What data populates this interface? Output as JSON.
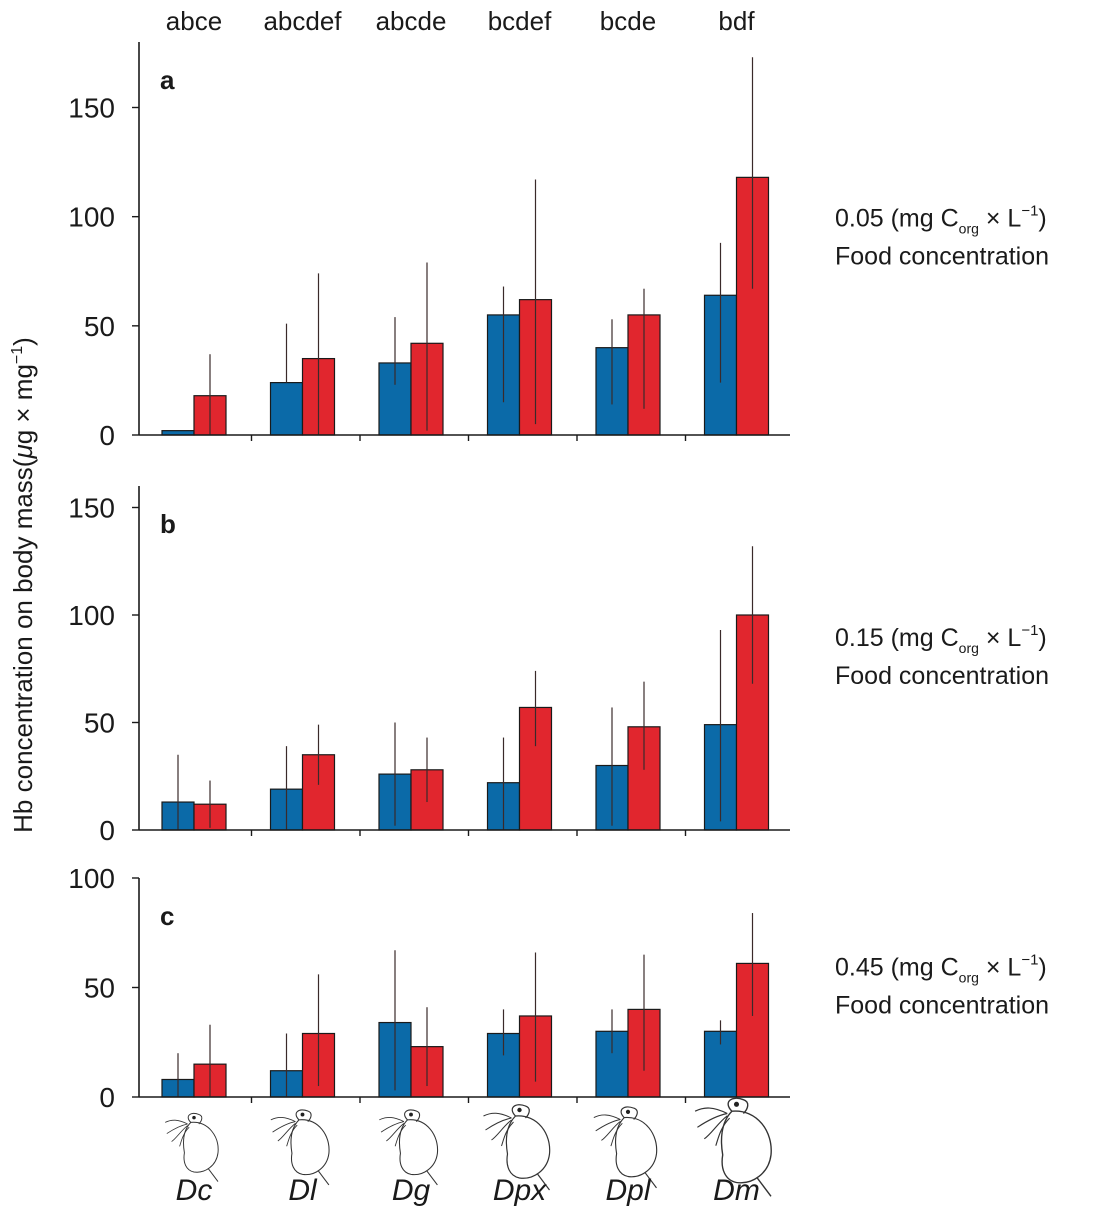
{
  "chart_data": [
    {
      "type": "bar",
      "panel": "a",
      "categories": [
        "Dc",
        "Dl",
        "Dg",
        "Dpx",
        "Dpl",
        "Dm"
      ],
      "series": [
        {
          "name": "blue",
          "color": "#0b6aa8",
          "values": [
            2,
            24,
            33,
            55,
            40,
            64
          ],
          "err_low": [
            2,
            24,
            23,
            15,
            14,
            24
          ],
          "err_high": [
            2,
            51,
            54,
            68,
            53,
            88
          ]
        },
        {
          "name": "red",
          "color": "#e1262e",
          "values": [
            18,
            35,
            42,
            62,
            55,
            118
          ],
          "err_low": [
            0,
            0,
            2,
            5,
            12,
            67
          ],
          "err_high": [
            37,
            74,
            79,
            117,
            67,
            173
          ]
        }
      ],
      "ylim": [
        0,
        180
      ],
      "yticks": [
        0,
        50,
        100,
        150
      ],
      "letters": [
        "abce",
        "abcdef",
        "abcde",
        "bcdef",
        "bcde",
        "bdf"
      ],
      "side_label": {
        "prefix": "0.05 (mg C",
        "sub": "org",
        "mid": " × L",
        "sup": "−1",
        "suffix": ")",
        "line2": "Food concentration"
      }
    },
    {
      "type": "bar",
      "panel": "b",
      "categories": [
        "Dc",
        "Dl",
        "Dg",
        "Dpx",
        "Dpl",
        "Dm"
      ],
      "series": [
        {
          "name": "blue",
          "color": "#0b6aa8",
          "values": [
            13,
            19,
            26,
            22,
            30,
            49
          ],
          "err_low": [
            0,
            0,
            2,
            0,
            2,
            4
          ],
          "err_high": [
            35,
            39,
            50,
            43,
            57,
            93
          ]
        },
        {
          "name": "red",
          "color": "#e1262e",
          "values": [
            12,
            35,
            28,
            57,
            48,
            100
          ],
          "err_low": [
            1,
            21,
            13,
            39,
            28,
            68
          ],
          "err_high": [
            23,
            49,
            43,
            74,
            69,
            132
          ]
        }
      ],
      "ylim": [
        0,
        160
      ],
      "yticks": [
        0,
        50,
        100,
        150
      ],
      "side_label": {
        "prefix": "0.15 (mg C",
        "sub": "org",
        "mid": " × L",
        "sup": "−1",
        "suffix": ")",
        "line2": "Food concentration"
      }
    },
    {
      "type": "bar",
      "panel": "c",
      "categories": [
        "Dc",
        "Dl",
        "Dg",
        "Dpx",
        "Dpl",
        "Dm"
      ],
      "series": [
        {
          "name": "blue",
          "color": "#0b6aa8",
          "values": [
            8,
            12,
            34,
            29,
            30,
            30
          ],
          "err_low": [
            0,
            0,
            3,
            19,
            20,
            24
          ],
          "err_high": [
            20,
            29,
            67,
            40,
            40,
            35
          ]
        },
        {
          "name": "red",
          "color": "#e1262e",
          "values": [
            15,
            29,
            23,
            37,
            40,
            61
          ],
          "err_low": [
            0,
            5,
            5,
            7,
            12,
            37
          ],
          "err_high": [
            33,
            56,
            41,
            66,
            65,
            84
          ]
        }
      ],
      "ylim": [
        0,
        100
      ],
      "yticks": [
        0,
        50,
        100
      ],
      "side_label": {
        "prefix": "0.45 (mg C",
        "sub": "org",
        "mid": " × L",
        "sup": "−1",
        "suffix": ")",
        "line2": "Food concentration"
      }
    }
  ],
  "y_axis_label": {
    "prefix": "Hb concentration on body mass(",
    "mu": "μ",
    "mid": "g × mg",
    "sup": "−1",
    "suffix": ")"
  },
  "species_labels": [
    "Dc",
    "Dl",
    "Dg",
    "Dpx",
    "Dpl",
    "Dm"
  ],
  "species_icon_names": [
    "daphnia-icon",
    "daphnia-icon",
    "daphnia-icon",
    "daphnia-icon",
    "daphnia-icon",
    "daphnia-icon"
  ]
}
